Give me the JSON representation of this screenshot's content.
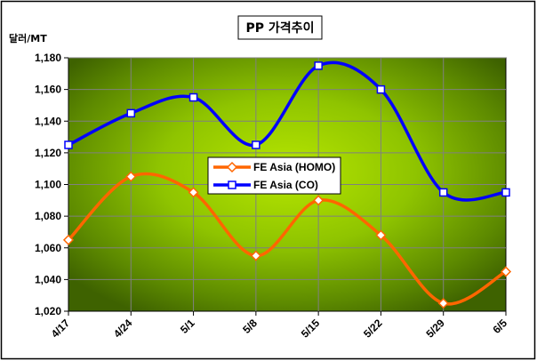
{
  "chart_data": {
    "type": "line",
    "title": "PP 가격추이",
    "ylabel": "달러/MT",
    "xlabel": "",
    "categories": [
      "4/17",
      "4/24",
      "5/1",
      "5/8",
      "5/15",
      "5/22",
      "5/29",
      "6/5"
    ],
    "ylim": [
      1020,
      1180
    ],
    "yticks": [
      1020,
      1040,
      1060,
      1080,
      1100,
      1120,
      1140,
      1160,
      1180
    ],
    "ytick_labels": [
      "1,020",
      "1,040",
      "1,060",
      "1,080",
      "1,100",
      "1,120",
      "1,140",
      "1,160",
      "1,180"
    ],
    "grid": true,
    "legend_position": "center",
    "series": [
      {
        "name": "FE Asia (HOMO)",
        "values": [
          1065,
          1105,
          1095,
          1055,
          1090,
          1068,
          1025,
          1045
        ],
        "color": "#ff6600",
        "marker": "diamond"
      },
      {
        "name": "FE Asia (CO)",
        "values": [
          1125,
          1145,
          1155,
          1125,
          1175,
          1160,
          1095,
          1095
        ],
        "color": "#0000ff",
        "marker": "square"
      }
    ]
  },
  "colors": {
    "plot_bg_light": "#aadd00",
    "plot_bg_dark": "#3a5a00",
    "grid": "#808080"
  }
}
